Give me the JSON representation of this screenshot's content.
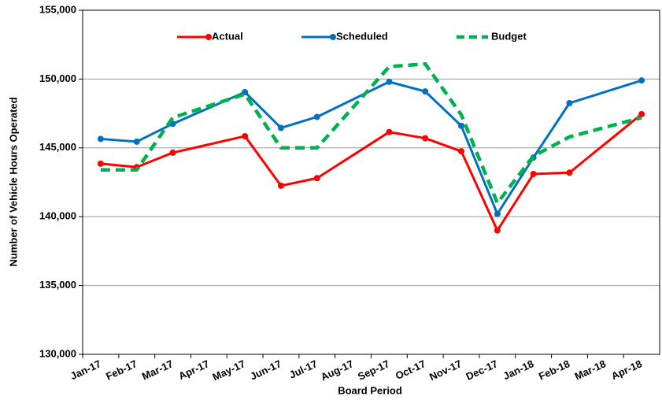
{
  "chart_data": {
    "type": "line",
    "x_label": "Board Period",
    "y_label": "Number of Vehicle Hours Operated",
    "categories": [
      "Jan-17",
      "Feb-17",
      "Mar-17",
      "Apr-17",
      "May-17",
      "Jun-17",
      "Jul-17",
      "Aug-17",
      "Sep-17",
      "Oct-17",
      "Nov-17",
      "Dec-17",
      "Jan-18",
      "Feb-18",
      "Mar-18",
      "Apr-18"
    ],
    "connect_gaps": true,
    "series": [
      {
        "name": "Actual",
        "color": "#ff0000",
        "dashed": false,
        "markers": true,
        "values": [
          143850,
          143600,
          144650,
          null,
          145850,
          142250,
          142800,
          null,
          146150,
          145700,
          144750,
          139000,
          143100,
          143200,
          null,
          147450
        ]
      },
      {
        "name": "Scheduled",
        "color": "#0070c0",
        "dashed": false,
        "markers": true,
        "values": [
          145650,
          145450,
          146750,
          null,
          149050,
          146450,
          147250,
          null,
          149800,
          149100,
          146600,
          140200,
          144300,
          148250,
          null,
          149900
        ]
      },
      {
        "name": "Budget",
        "color": "#00b050",
        "dashed": true,
        "markers": false,
        "values": [
          143400,
          143400,
          147200,
          null,
          148900,
          145000,
          145000,
          null,
          150900,
          151100,
          147400,
          141000,
          144400,
          145800,
          null,
          147200
        ]
      }
    ],
    "ylim": [
      130000,
      155000
    ],
    "yticks": [
      {
        "value": 130000,
        "label": "130,000"
      },
      {
        "value": 135000,
        "label": "135,000"
      },
      {
        "value": 140000,
        "label": "140,000"
      },
      {
        "value": 145000,
        "label": "145,000"
      },
      {
        "value": 150000,
        "label": "150,000"
      },
      {
        "value": 155000,
        "label": "155,000"
      }
    ],
    "grid": true,
    "legend": "top"
  }
}
